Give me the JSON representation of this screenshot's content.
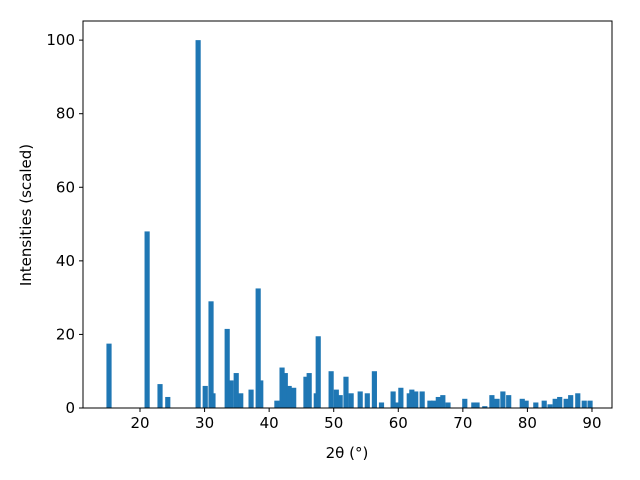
{
  "chart_data": {
    "type": "bar",
    "xlabel": "2θ (°)",
    "ylabel": "Intensities (scaled)",
    "color": "#1f77b4",
    "x": [
      15.2,
      21.1,
      23.1,
      24.3,
      29.0,
      30.1,
      31.0,
      31.3,
      33.5,
      34.1,
      34.9,
      35.6,
      37.2,
      38.3,
      38.7,
      41.2,
      42.0,
      42.5,
      43.1,
      43.8,
      45.7,
      46.2,
      47.3,
      47.6,
      49.6,
      50.4,
      51.0,
      51.9,
      52.7,
      54.1,
      55.2,
      56.3,
      57.4,
      59.2,
      59.8,
      60.4,
      61.7,
      62.1,
      62.7,
      63.7,
      64.9,
      65.5,
      66.2,
      66.9,
      67.7,
      70.3,
      71.7,
      72.2,
      73.4,
      74.5,
      75.3,
      76.2,
      77.1,
      79.2,
      79.8,
      81.3,
      82.6,
      83.5,
      84.3,
      85.0,
      86.0,
      86.7,
      87.8,
      88.8,
      89.7
    ],
    "values": [
      17.5,
      48,
      6.5,
      3,
      100,
      6,
      29,
      4,
      21.5,
      7.5,
      9.5,
      4,
      5,
      32.5,
      7.5,
      2,
      11,
      9.5,
      6,
      5.5,
      8.5,
      9.5,
      4,
      19.5,
      10,
      5,
      3.5,
      8.5,
      4,
      4.5,
      4,
      10,
      1.5,
      4.5,
      1.5,
      5.5,
      4,
      5,
      4.5,
      4.5,
      2,
      2,
      3,
      3.5,
      1.5,
      2.5,
      1.5,
      1.5,
      0.5,
      3.5,
      2.5,
      4.5,
      3.5,
      2.5,
      2,
      1.5,
      2,
      1,
      2.5,
      3,
      2.5,
      3.5,
      4,
      2,
      2
    ],
    "xlim": [
      11.17,
      93.1
    ],
    "xticks": [
      20,
      30,
      40,
      50,
      60,
      70,
      80,
      90
    ],
    "ylim": [
      0,
      105.2
    ],
    "yticks": [
      0,
      20,
      40,
      60,
      80,
      100
    ]
  }
}
